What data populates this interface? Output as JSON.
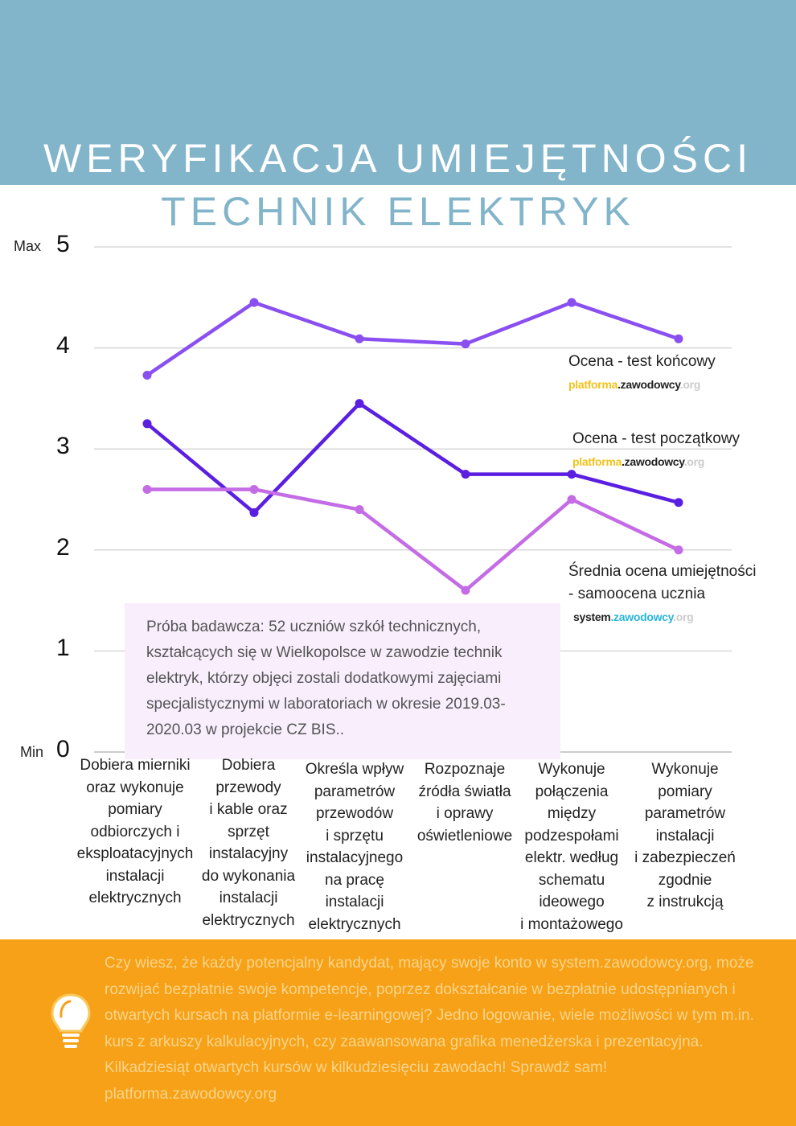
{
  "header": {
    "title": "WERYFIKACJA UMIEJĘTNOŚCI",
    "subtitle": "TECHNIK ELEKTRYK"
  },
  "axis": {
    "max_label": "Max",
    "min_label": "Min"
  },
  "chart_data": {
    "type": "line",
    "ylim": [
      0,
      5
    ],
    "yticks": [
      "0",
      "1",
      "2",
      "3",
      "4",
      "5"
    ],
    "categories": [
      "Dobiera mierniki oraz wykonuje pomiary odbiorczych i eksploatacyjnych instalacji elektrycznych",
      "Dobiera przewody i kable oraz sprzęt instalacyjny do wykonania instalacji elektrycznych",
      "Określa wpływ parametrów przewodów i sprzętu instalacyjnego na pracę instalacji elektrycznych",
      "Rozpoznaje źródła światła i oprawy oświetleniowe",
      "Wykonuje połączenia między podzespołami elektr. według schematu ideowego i montażowego",
      "Wykonuje pomiary parametrów instalacji i zabezpieczeń zgodnie z instrukcją"
    ],
    "category_lines": [
      [
        "Dobiera mierniki",
        "oraz wykonuje",
        "pomiary",
        "odbiorczych i",
        "eksploatacyjnych",
        "instalacji",
        "elektrycznych"
      ],
      [
        "Dobiera",
        "przewody",
        "i kable oraz",
        "sprzęt",
        "instalacyjny",
        "do wykonania",
        "instalacji",
        "elektrycznych"
      ],
      [
        "Określa wpływ",
        "parametrów",
        "przewodów",
        "i sprzętu",
        "instalacyjnego",
        "na pracę",
        "instalacji",
        "elektrycznych"
      ],
      [
        "Rozpoznaje",
        "źródła światła",
        "i oprawy",
        "oświetleniowe"
      ],
      [
        "Wykonuje",
        "połączenia",
        "między",
        "podzespołami",
        "elektr. według",
        "schematu",
        "ideowego",
        "i montażowego"
      ],
      [
        "Wykonuje",
        "pomiary",
        "parametrów",
        "instalacji",
        "i zabezpieczeń",
        "zgodnie",
        "z instrukcją"
      ]
    ],
    "series": [
      {
        "name": "Ocena - test końcowy",
        "color": "#8A4FF0",
        "values": [
          3.73,
          4.45,
          4.09,
          4.04,
          4.45,
          4.09
        ]
      },
      {
        "name": "Ocena - test początkowy",
        "color": "#5A1FE0",
        "values": [
          3.25,
          2.37,
          3.45,
          2.75,
          2.75,
          2.47
        ]
      },
      {
        "name": "Średnia ocena umiejętności - samoocena ucznia",
        "color": "#C46BE6",
        "values": [
          2.6,
          2.6,
          2.4,
          1.6,
          2.5,
          2.0
        ]
      }
    ]
  },
  "legend": {
    "s1": {
      "label": "Ocena - test końcowy",
      "logo_a": "platforma",
      "logo_b": ".zawodowcy",
      "logo_c": ".org"
    },
    "s2": {
      "label": "Ocena - test początkowy",
      "logo_a": "platforma",
      "logo_b": ".zawodowcy",
      "logo_c": ".org"
    },
    "s3": {
      "label1": "Średnia ocena umiejętności",
      "label2": "- samoocena ucznia",
      "logo_a": "system",
      "logo_b": ".zawodowcy",
      "logo_c": ".org"
    }
  },
  "note": "Próba badawcza: 52 uczniów szkół technicznych, kształcących się w Wielkopolsce w zawodzie technik elektryk, którzy objęci zostali dodatkowymi zajęciami specjalistycznymi w laboratoriach w okresie 2019.03-2020.03 w projekcie CZ BIS..",
  "footer": {
    "text": "Czy wiesz, że każdy potencjalny kandydat, mający swoje konto w system.zawodowcy.org, może rozwijać bezpłatnie swoje kompetencje, poprzez dokształcanie w bezpłatnie udostępnianych i otwartych kursach na platformie e-learningowej? Jedno logowanie, wiele możliwości w tym m.in. kurs z arkuszy kalkulacyjnych, czy zaawansowana grafika menedżerska i prezentacyjna. Kilkadziesiąt otwartych kursów w kilkudziesięciu zawodach! Sprawdź sam! platforma.zawodowcy.org"
  }
}
